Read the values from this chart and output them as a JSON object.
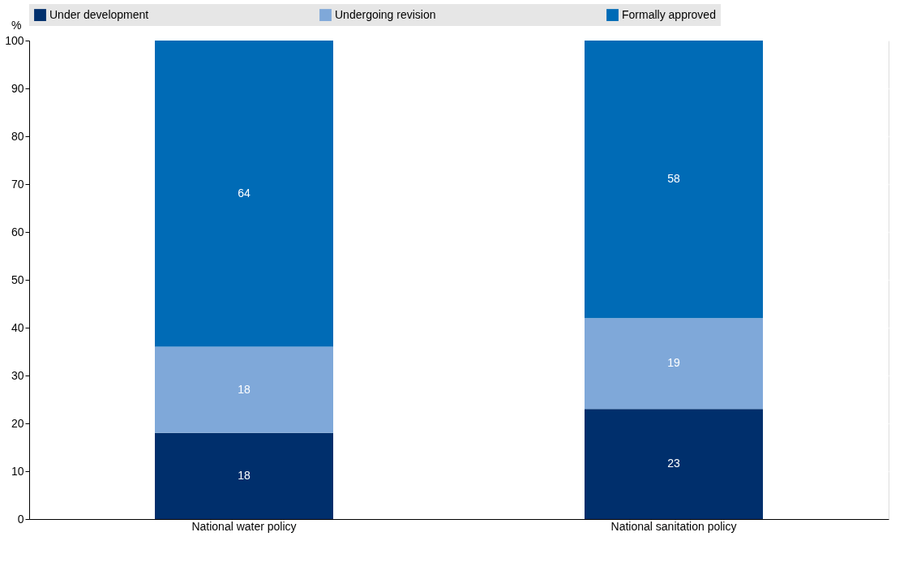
{
  "chart_data": {
    "type": "bar",
    "stacked": true,
    "ylabel": "%",
    "categories": [
      "National water policy",
      "National sanitation policy"
    ],
    "series": [
      {
        "name": "Under development",
        "color": "#002f6c",
        "values": [
          18,
          23
        ]
      },
      {
        "name": "Undergoing revision",
        "color": "#7fa8d9",
        "values": [
          18,
          19
        ]
      },
      {
        "name": "Formally approved",
        "color": "#006bb6",
        "values": [
          64,
          58
        ]
      }
    ],
    "ylim": [
      0,
      100
    ],
    "yticks": [
      0,
      10,
      20,
      30,
      40,
      50,
      60,
      70,
      80,
      90,
      100
    ],
    "grid": "y",
    "legend": "top",
    "data_labels": true
  }
}
